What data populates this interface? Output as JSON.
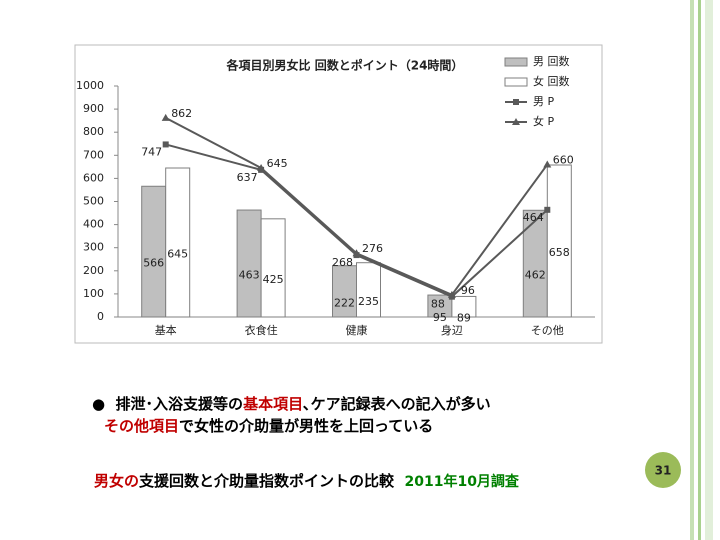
{
  "chart_data": {
    "type": "bar-line",
    "title": "各項目別男女比 回数とポイント（24時間）",
    "categories": [
      "基本",
      "衣食住",
      "健康",
      "身辺",
      "その他"
    ],
    "series": [
      {
        "name": "男 回数",
        "kind": "bar",
        "color": "#bfbfbf",
        "values": [
          566,
          463,
          222,
          95,
          462
        ]
      },
      {
        "name": "女 回数",
        "kind": "bar",
        "color": "#ffffff",
        "values": [
          645,
          425,
          235,
          89,
          658
        ]
      },
      {
        "name": "男 P",
        "kind": "line",
        "marker": "square",
        "color": "#595959",
        "values": [
          747,
          637,
          268,
          88,
          464
        ]
      },
      {
        "name": "女 P",
        "kind": "line",
        "marker": "triangle",
        "color": "#595959",
        "values": [
          862,
          645,
          276,
          96,
          660
        ]
      }
    ],
    "ylim": [
      0,
      1000
    ],
    "yticks": [
      0,
      100,
      200,
      300,
      400,
      500,
      600,
      700,
      800,
      900,
      1000
    ],
    "grid": false
  },
  "bullet": {
    "marker": "●",
    "line1": [
      "排泄･入浴支援等の",
      "基本項目",
      "､ケア記録表への記入が多い"
    ],
    "line2": [
      "その他項目",
      "で女性の介助量が男性を上回っている"
    ]
  },
  "footer": {
    "red": "男女の",
    "text": "支援回数と介助量指数ポイントの比較",
    "date": "2011年10月調査"
  },
  "page_number": "31"
}
